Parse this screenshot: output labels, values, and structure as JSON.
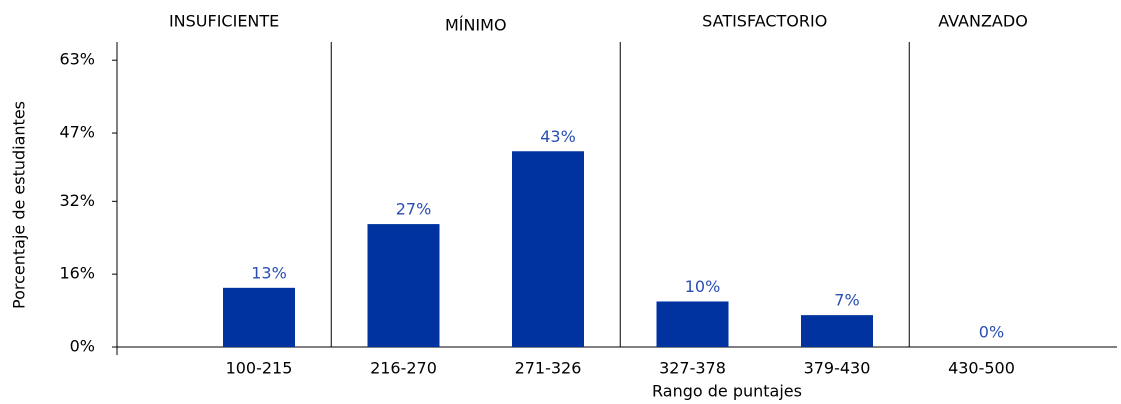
{
  "chart_data": {
    "type": "bar",
    "sections": [
      "INSUFICIENTE",
      "MÍNIMO",
      "SATISFACTORIO",
      "AVANZADO"
    ],
    "y_label": "Porcentaje de estudiantes",
    "x_label": "Rango de puntajes",
    "categories": [
      "100-215",
      "216-270",
      "271-326",
      "327-378",
      "379-430",
      "430-500"
    ],
    "values": [
      13,
      27,
      43,
      10,
      7,
      0
    ],
    "value_labels": [
      "13%",
      "27%",
      "43%",
      "10%",
      "7%",
      "0%"
    ],
    "color": "#0033a0",
    "ylim": [
      0,
      67
    ],
    "yticks": [
      {
        "value": 0,
        "label": "0%"
      },
      {
        "value": 16,
        "label": "16%"
      },
      {
        "value": 32,
        "label": "32%"
      },
      {
        "value": 47,
        "label": "47%"
      },
      {
        "value": 63,
        "label": "63%"
      }
    ]
  }
}
